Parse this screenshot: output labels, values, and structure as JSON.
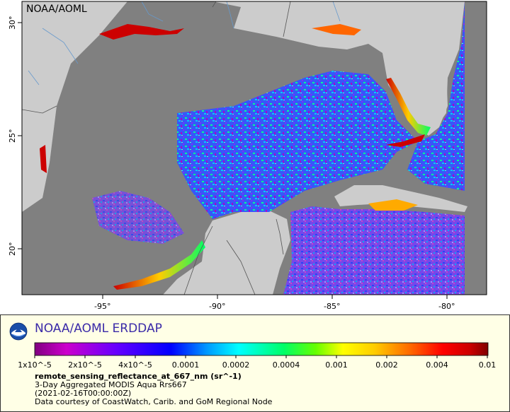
{
  "map": {
    "watermark": "NOAA/AOML",
    "lon_ticks": [
      "-95°",
      "-90°",
      "-85°",
      "-80°"
    ],
    "lat_ticks": [
      "30°",
      "25°",
      "20°"
    ],
    "colors": {
      "land": "#cccccc",
      "ocean_nodata": "#808080",
      "coast": "#555555",
      "rivers": "#6699cc"
    }
  },
  "legend": {
    "title": "NOAA/AOML ERDDAP",
    "logo": "noaa-logo-icon",
    "colorbar_ticks": [
      "1x10^-5",
      "2x10^-5",
      "4x10^-5",
      "0.0001",
      "0.0002",
      "0.0004",
      "0.001",
      "0.002",
      "0.004",
      "0.01"
    ],
    "colorbar_colors": [
      "#800080",
      "#cc00cc",
      "#6600ff",
      "#0000ff",
      "#0099ff",
      "#00ffff",
      "#00ff66",
      "#66ff00",
      "#ffff00",
      "#ffcc00",
      "#ff6600",
      "#ff0000",
      "#cc0000",
      "#800000"
    ],
    "variable": "remote_sensing_reflectance_at_667_nm (sr^-1)",
    "dataset": "3-Day Aggregated MODIS Aqua Rrs667",
    "time": "(2021-02-16T00:00:00Z)",
    "credit": "Data courtesy of CoastWatch, Carib. and GoM Regional Node"
  }
}
